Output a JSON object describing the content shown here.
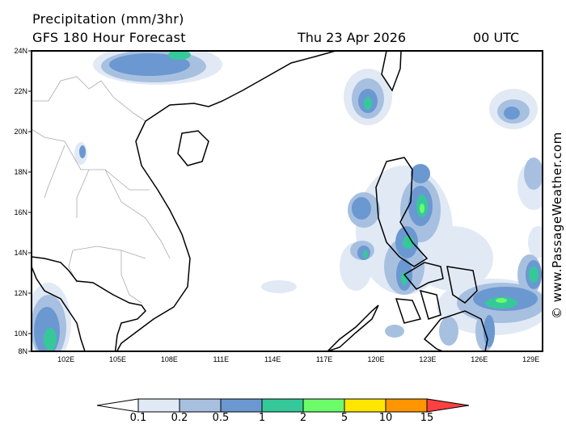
{
  "header": {
    "title": "Precipitation (mm/3hr)",
    "subtitle": "GFS 180 Hour Forecast",
    "date": "Thu 23 Apr 2026",
    "time": "00 UTC"
  },
  "watermark": "© www.PassageWeather.com",
  "map": {
    "region": "South China Sea / Philippines",
    "lon_ticks": [
      "102E",
      "105E",
      "108E",
      "111E",
      "114E",
      "117E",
      "120E",
      "123E",
      "126E",
      "129E"
    ],
    "lat_ticks": [
      "24N",
      "22N",
      "20N",
      "18N",
      "16N",
      "14N",
      "12N",
      "10N",
      "8N"
    ]
  },
  "legend": {
    "unit": "mm/3hr",
    "labels": [
      "0.1",
      "0.2",
      "0.5",
      "1",
      "2",
      "5",
      "10",
      "15"
    ],
    "colors": [
      "#e1e9f5",
      "#a7c0e0",
      "#6b98d0",
      "#35c99a",
      "#6cfc6a",
      "#ffe600",
      "#ff9500",
      "#ff4040"
    ]
  }
}
